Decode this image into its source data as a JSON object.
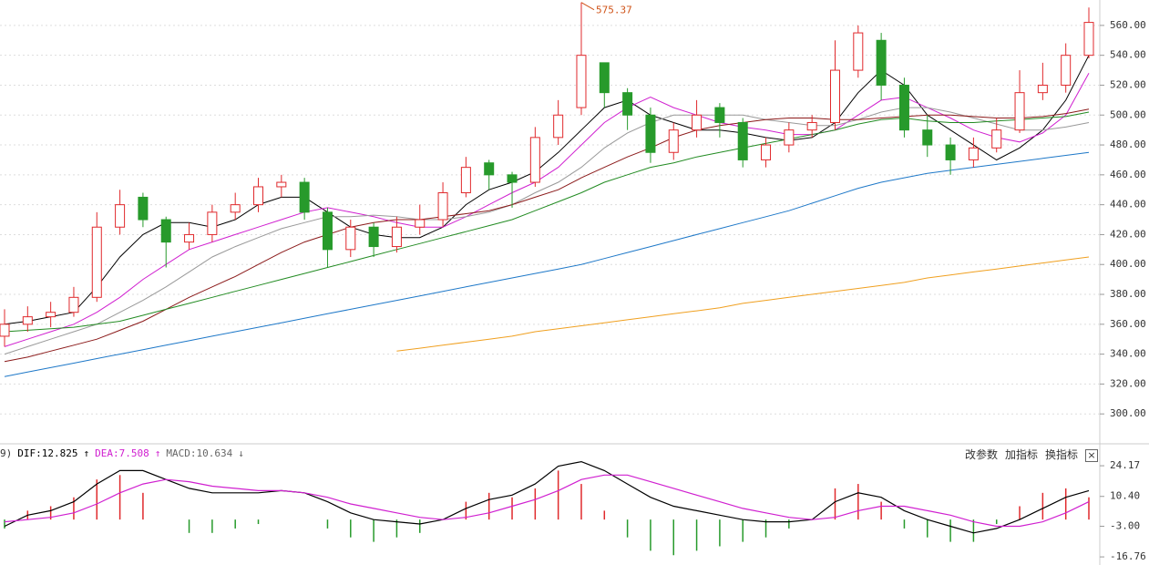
{
  "chart_data": [
    {
      "type": "candlestick",
      "ylim": [
        280,
        577
      ],
      "yticks": [
        {
          "value": 300,
          "label": "300.00"
        },
        {
          "value": 320,
          "label": "320.00"
        },
        {
          "value": 340,
          "label": "340.00"
        },
        {
          "value": 360,
          "label": "360.00"
        },
        {
          "value": 380,
          "label": "380.00"
        },
        {
          "value": 400,
          "label": "400.00"
        },
        {
          "value": 420,
          "label": "420.00"
        },
        {
          "value": 440,
          "label": "440.00"
        },
        {
          "value": 460,
          "label": "460.00"
        },
        {
          "value": 480,
          "label": "480.00"
        },
        {
          "value": 500,
          "label": "500.00"
        },
        {
          "value": 520,
          "label": "520.00"
        },
        {
          "value": 540,
          "label": "540.00"
        },
        {
          "value": 560,
          "label": "560.00"
        }
      ],
      "grid": true,
      "up_color": "#e0292c",
      "down_color": "#279a2b",
      "max_label": 575.37,
      "max_label_color": "#d0541a",
      "open": [
        352,
        360,
        365,
        368,
        378,
        425,
        445,
        430,
        415,
        420,
        435,
        440,
        452,
        455,
        435,
        410,
        425,
        412,
        425,
        430,
        448,
        468,
        460,
        455,
        485,
        505,
        535,
        515,
        500,
        475,
        490,
        505,
        495,
        470,
        480,
        490,
        495,
        530,
        550,
        520,
        490,
        480,
        470,
        478,
        490,
        515,
        520,
        540
      ],
      "high": [
        370,
        372,
        375,
        385,
        435,
        450,
        448,
        432,
        428,
        440,
        448,
        458,
        460,
        458,
        438,
        430,
        428,
        432,
        440,
        455,
        472,
        470,
        462,
        492,
        510,
        575.37,
        535,
        518,
        505,
        495,
        510,
        508,
        498,
        485,
        495,
        500,
        550,
        560,
        555,
        525,
        500,
        485,
        485,
        498,
        530,
        535,
        548,
        572
      ],
      "low": [
        345,
        355,
        358,
        365,
        375,
        420,
        425,
        398,
        410,
        415,
        430,
        435,
        445,
        430,
        398,
        405,
        405,
        408,
        420,
        425,
        445,
        450,
        438,
        452,
        480,
        500,
        505,
        490,
        468,
        470,
        485,
        485,
        465,
        465,
        475,
        485,
        490,
        525,
        510,
        485,
        472,
        460,
        465,
        475,
        488,
        510,
        515,
        538
      ],
      "close": [
        360,
        365,
        368,
        378,
        425,
        440,
        430,
        415,
        420,
        435,
        440,
        452,
        455,
        435,
        410,
        425,
        412,
        425,
        430,
        448,
        465,
        460,
        455,
        485,
        500,
        540,
        515,
        500,
        475,
        490,
        500,
        495,
        470,
        480,
        490,
        495,
        530,
        555,
        520,
        490,
        480,
        470,
        478,
        490,
        515,
        520,
        540,
        562
      ],
      "series": [
        {
          "color": "#000000",
          "values": [
            360,
            362,
            365,
            368,
            385,
            405,
            420,
            428,
            428,
            425,
            430,
            440,
            445,
            445,
            435,
            425,
            420,
            418,
            418,
            425,
            440,
            450,
            455,
            462,
            475,
            490,
            505,
            510,
            500,
            495,
            490,
            490,
            488,
            485,
            483,
            485,
            495,
            515,
            530,
            520,
            500,
            490,
            480,
            470,
            478,
            490,
            510,
            540
          ]
        },
        {
          "color": "#d020d0",
          "values": [
            345,
            350,
            355,
            360,
            368,
            378,
            390,
            400,
            410,
            415,
            420,
            425,
            430,
            435,
            438,
            435,
            432,
            428,
            425,
            425,
            432,
            440,
            448,
            455,
            465,
            480,
            495,
            505,
            512,
            505,
            500,
            495,
            492,
            490,
            487,
            487,
            490,
            500,
            510,
            512,
            505,
            498,
            490,
            485,
            482,
            488,
            500,
            528
          ]
        },
        {
          "color": "#999999",
          "values": [
            340,
            345,
            350,
            355,
            360,
            368,
            376,
            385,
            395,
            405,
            412,
            418,
            424,
            428,
            432,
            432,
            433,
            432,
            430,
            430,
            432,
            435,
            440,
            448,
            455,
            465,
            478,
            488,
            495,
            500,
            500,
            500,
            500,
            497,
            495,
            493,
            493,
            497,
            502,
            505,
            505,
            502,
            498,
            494,
            490,
            490,
            492,
            495
          ]
        },
        {
          "color": "#8b1a1a",
          "values": [
            335,
            338,
            342,
            346,
            350,
            356,
            362,
            370,
            378,
            385,
            392,
            400,
            408,
            415,
            420,
            425,
            428,
            430,
            430,
            432,
            434,
            436,
            440,
            445,
            450,
            458,
            465,
            472,
            478,
            485,
            490,
            493,
            495,
            497,
            498,
            498,
            497,
            497,
            498,
            499,
            500,
            500,
            499,
            498,
            498,
            499,
            501,
            504
          ]
        },
        {
          "color": "#228b22",
          "values": [
            355,
            356,
            357,
            358,
            360,
            362,
            366,
            370,
            374,
            378,
            382,
            386,
            390,
            394,
            398,
            402,
            406,
            410,
            414,
            418,
            422,
            426,
            430,
            436,
            442,
            448,
            455,
            460,
            465,
            468,
            472,
            475,
            478,
            481,
            484,
            487,
            490,
            494,
            497,
            498,
            496,
            495,
            495,
            496,
            497,
            498,
            499,
            502
          ]
        },
        {
          "color": "#1e78c8",
          "values": [
            325,
            328,
            331,
            334,
            337,
            340,
            343,
            346,
            349,
            352,
            355,
            358,
            361,
            364,
            367,
            370,
            373,
            376,
            379,
            382,
            385,
            388,
            391,
            394,
            397,
            400,
            404,
            408,
            412,
            416,
            420,
            424,
            428,
            432,
            436,
            441,
            446,
            451,
            455,
            458,
            461,
            463,
            465,
            467,
            469,
            471,
            473,
            475
          ]
        },
        {
          "color": "#f0a020",
          "values": [
            null,
            null,
            null,
            null,
            null,
            null,
            null,
            null,
            null,
            null,
            null,
            null,
            null,
            null,
            null,
            null,
            null,
            342,
            344,
            346,
            348,
            350,
            352,
            355,
            357,
            359,
            361,
            363,
            365,
            367,
            369,
            371,
            374,
            376,
            378,
            380,
            382,
            384,
            386,
            388,
            391,
            393,
            395,
            397,
            399,
            401,
            403,
            405
          ]
        }
      ]
    },
    {
      "type": "macd",
      "ylim": [
        -20.4,
        32.8
      ],
      "yticks": [
        {
          "value": 24.17,
          "label": "24.17"
        },
        {
          "value": 10.4,
          "label": "10.40"
        },
        {
          "value": -3,
          "label": "-3.00"
        },
        {
          "value": -16.76,
          "label": "-16.76"
        }
      ],
      "up_color": "#e0292c",
      "down_color": "#279a2b",
      "series": [
        {
          "color": "#000000",
          "values": [
            -3,
            2,
            4,
            8,
            16,
            22,
            22,
            18,
            14,
            12,
            12,
            12,
            13,
            12,
            8,
            3,
            0,
            -1,
            -2,
            0,
            5,
            9,
            11,
            16,
            24,
            26,
            22,
            16,
            10,
            6,
            4,
            2,
            0,
            -1,
            -1,
            0,
            8,
            12,
            10,
            4,
            0,
            -3,
            -6,
            -4,
            0,
            5,
            10,
            13
          ]
        },
        {
          "color": "#d020d0",
          "values": [
            -1,
            0,
            1,
            3,
            7,
            12,
            16,
            18,
            17,
            15,
            14,
            13,
            13,
            12,
            10,
            7,
            5,
            3,
            1,
            0,
            1,
            3,
            6,
            9,
            13,
            18,
            20,
            20,
            17,
            14,
            11,
            8,
            5,
            3,
            1,
            0,
            1,
            4,
            6,
            6,
            4,
            2,
            -1,
            -3,
            -3,
            -1,
            3,
            8
          ]
        }
      ],
      "bars": [
        -4,
        4,
        6,
        10,
        18,
        20,
        12,
        0,
        -6,
        -6,
        -4,
        -2,
        0,
        0,
        -4,
        -8,
        -10,
        -8,
        -6,
        0,
        8,
        12,
        10,
        14,
        22,
        16,
        4,
        -8,
        -14,
        -16,
        -14,
        -12,
        -10,
        -8,
        -4,
        0,
        14,
        16,
        8,
        -4,
        -8,
        -10,
        -10,
        -2,
        6,
        12,
        14,
        10
      ]
    }
  ],
  "macd_header": [
    {
      "text": "9)",
      "color": "#333333"
    },
    {
      "text": "DIF:12.825",
      "color": "#000000"
    },
    {
      "text": "↑",
      "color": "#000000"
    },
    {
      "text": "DEA:7.508",
      "color": "#d020d0"
    },
    {
      "text": "↑",
      "color": "#d020d0"
    },
    {
      "text": "MACD:10.634",
      "color": "#666666"
    },
    {
      "text": "↓",
      "color": "#666666"
    }
  ],
  "toolbar": [
    "改参数",
    "加指标",
    "换指标",
    "×"
  ]
}
